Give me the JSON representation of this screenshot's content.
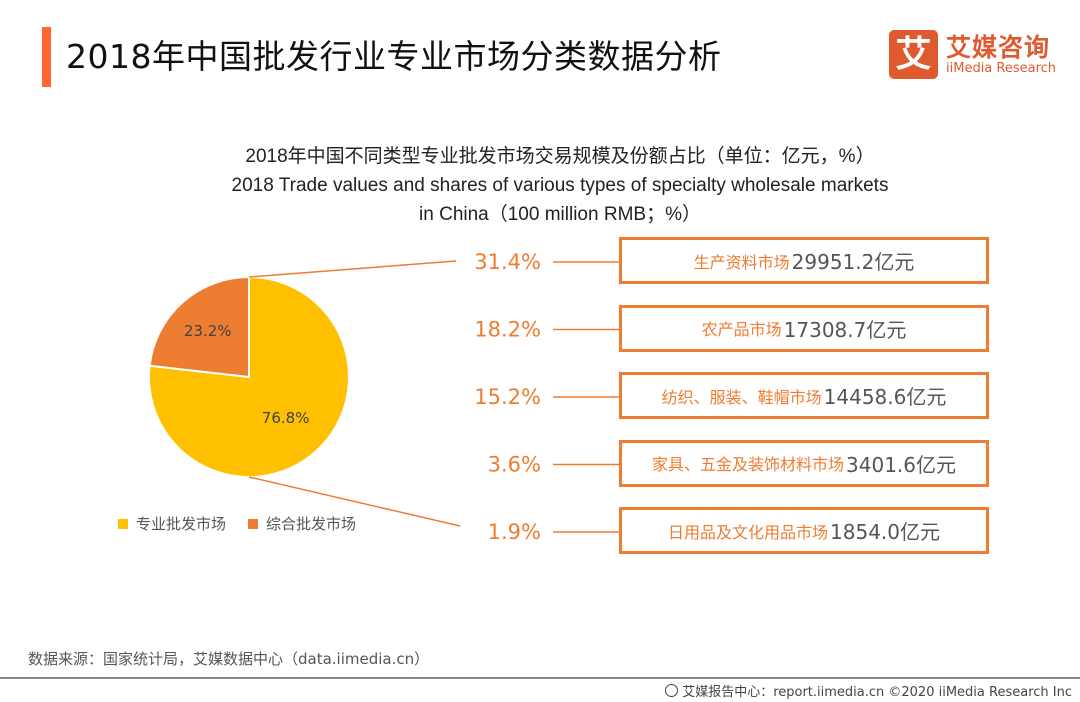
{
  "header": {
    "title": "2018年中国批发行业专业市场分类数据分析",
    "logo": {
      "mark": "艾",
      "cn": "艾媒咨询",
      "en": "iiMedia Research"
    }
  },
  "chart_data": {
    "type": "pie",
    "title": "2018年中国不同类型专业批发市场交易规模及份额占比（单位：亿元，%）",
    "subtitle_lines": [
      "2018 Trade values and shares of various types of specialty wholesale markets",
      "in China（100 million RMB；%）"
    ],
    "pie": {
      "slices": [
        {
          "name": "专业批发市场",
          "value": 76.8,
          "label": "76.8%",
          "color": "#ffc000"
        },
        {
          "name": "综合批发市场",
          "value": 23.2,
          "label": "23.2%",
          "color": "#ed7d31"
        }
      ]
    },
    "breakdown_of": "专业批发市场",
    "breakdown": [
      {
        "pct": 31.4,
        "pct_label": "31.4%",
        "category": "生产资料市场",
        "value": 29951.2,
        "value_label": "29951.2亿元"
      },
      {
        "pct": 18.2,
        "pct_label": "18.2%",
        "category": "农产品市场",
        "value": 17308.7,
        "value_label": "17308.7亿元"
      },
      {
        "pct": 15.2,
        "pct_label": "15.2%",
        "category": "纺织、服装、鞋帽市场",
        "value": 14458.6,
        "value_label": "14458.6亿元"
      },
      {
        "pct": 3.6,
        "pct_label": "3.6%",
        "category": "家具、五金及装饰材料市场",
        "value": 3401.6,
        "value_label": "3401.6亿元"
      },
      {
        "pct": 1.9,
        "pct_label": "1.9%",
        "category": "日用品及文化用品市场",
        "value": 1854.0,
        "value_label": "1854.0亿元"
      }
    ],
    "legend": [
      "专业批发市场",
      "综合批发市场"
    ],
    "legend_position": "bottom-left",
    "accent_color": "#ef7c30"
  },
  "footer": {
    "source": "数据来源：国家统计局，艾媒数据中心（data.iimedia.cn）",
    "credit": "艾媒报告中心：report.iimedia.cn  ©2020  iiMedia Research Inc"
  }
}
